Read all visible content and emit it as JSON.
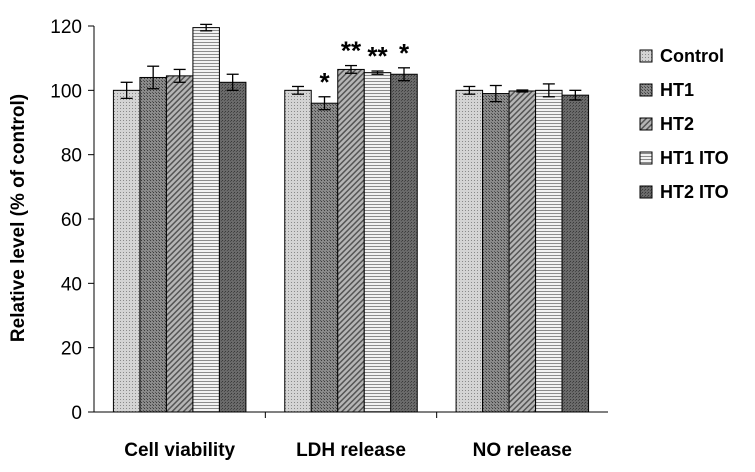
{
  "chart_data": {
    "type": "bar",
    "xlabel": "",
    "ylabel": "Relative level (% of control)",
    "ylim": [
      0,
      120
    ],
    "yticks": [
      0,
      20,
      40,
      60,
      80,
      100,
      120
    ],
    "grid": false,
    "legend_position": "right",
    "categories": [
      "Cell viability",
      "LDH release",
      "NO release"
    ],
    "series": [
      {
        "name": "Control",
        "color": "#c8c8c8",
        "pattern": "dots",
        "values": [
          100,
          100,
          100
        ],
        "errors": [
          2.5,
          1.2,
          1.2
        ]
      },
      {
        "name": "HT1",
        "color": "#7a7a7a",
        "pattern": "dark-dots",
        "values": [
          104,
          96,
          99
        ],
        "errors": [
          3.5,
          2.0,
          2.5
        ]
      },
      {
        "name": "HT2",
        "color": "#909090",
        "pattern": "diagonal",
        "values": [
          104.5,
          106.5,
          99.8
        ],
        "errors": [
          2.0,
          1.2,
          0.3
        ]
      },
      {
        "name": "HT1 ITO",
        "color": "#ededed",
        "pattern": "horizontal",
        "values": [
          119.5,
          105.5,
          100
        ],
        "errors": [
          1.0,
          0.5,
          2.0
        ]
      },
      {
        "name": "HT2 ITO",
        "color": "#666666",
        "pattern": "dark",
        "values": [
          102.5,
          105,
          98.5
        ],
        "errors": [
          2.5,
          2.0,
          1.5
        ]
      }
    ],
    "annotations": [
      {
        "category": "LDH release",
        "series": "HT1",
        "text": "*"
      },
      {
        "category": "LDH release",
        "series": "HT2",
        "text": "**"
      },
      {
        "category": "LDH release",
        "series": "HT1 ITO",
        "text": "**"
      },
      {
        "category": "LDH release",
        "series": "HT2 ITO",
        "text": "*"
      }
    ]
  }
}
